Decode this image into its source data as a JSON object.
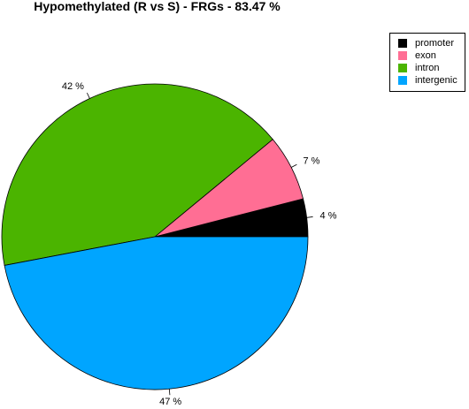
{
  "chart_data": {
    "type": "pie",
    "title": "Hypomethylated (R vs S) - FRGs - 83.47 %",
    "categories": [
      "promoter",
      "exon",
      "intron",
      "intergenic"
    ],
    "values": [
      4,
      7,
      42,
      47
    ],
    "labels": [
      "4 %",
      "7 %",
      "42 %",
      "47 %"
    ],
    "colors": [
      "#000000",
      "#FF6E94",
      "#4BB400",
      "#00A5FF"
    ],
    "legend_position": "top-right"
  }
}
